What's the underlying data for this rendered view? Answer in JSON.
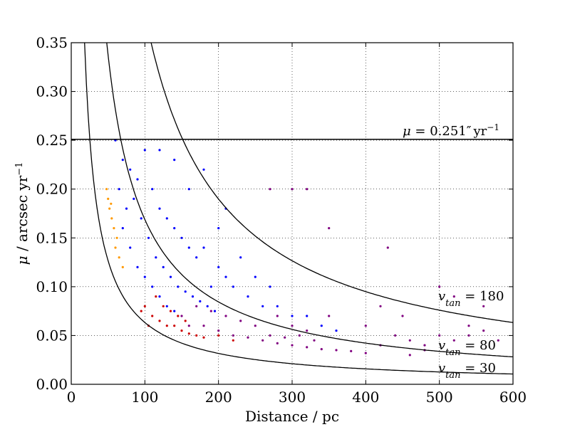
{
  "chart_data": {
    "type": "scatter",
    "title": "",
    "xlabel": "Distance / pc",
    "ylabel_parts": {
      "symbol": "μ",
      "text": " / arcsec yr",
      "sup": "−1"
    },
    "xlim": [
      0,
      600
    ],
    "ylim": [
      0,
      0.35
    ],
    "xticks": [
      0,
      100,
      200,
      300,
      400,
      500,
      600
    ],
    "xtick_labels": [
      "0",
      "100",
      "200",
      "300",
      "400",
      "500",
      "600"
    ],
    "yticks": [
      0.0,
      0.05,
      0.1,
      0.15,
      0.2,
      0.25,
      0.3,
      0.35
    ],
    "ytick_labels": [
      "0.00",
      "0.05",
      "0.10",
      "0.15",
      "0.20",
      "0.25",
      "0.30",
      "0.35"
    ],
    "grid": true,
    "grid_style": "dotted",
    "colors": {
      "blue": "#0000ff",
      "purple": "#800080",
      "red": "#cc0000",
      "orange": "#ff9900",
      "line": "#000000"
    },
    "hline": {
      "y": 0.251,
      "label": {
        "mu": "μ",
        "eq": " = 0.251",
        "prime": "″",
        "unit": "yr",
        "sup": "−1"
      }
    },
    "curves": [
      {
        "v": 30,
        "label": {
          "v": "v",
          "sub": "tan",
          "eq": " = 30"
        }
      },
      {
        "v": 80,
        "label": {
          "v": "v",
          "sub": "tan",
          "eq": " = 80"
        }
      },
      {
        "v": 180,
        "label": {
          "v": "v",
          "sub": "tan",
          "eq": " = 180"
        }
      }
    ],
    "series": [
      {
        "color": "blue",
        "points": [
          [
            60,
            0.25
          ],
          [
            70,
            0.23
          ],
          [
            80,
            0.22
          ],
          [
            90,
            0.21
          ],
          [
            100,
            0.24
          ],
          [
            110,
            0.2
          ],
          [
            120,
            0.18
          ],
          [
            130,
            0.17
          ],
          [
            140,
            0.16
          ],
          [
            150,
            0.15
          ],
          [
            160,
            0.14
          ],
          [
            170,
            0.13
          ],
          [
            180,
            0.14
          ],
          [
            200,
            0.12
          ],
          [
            210,
            0.11
          ],
          [
            220,
            0.1
          ],
          [
            240,
            0.09
          ],
          [
            260,
            0.08
          ],
          [
            280,
            0.08
          ],
          [
            300,
            0.07
          ],
          [
            320,
            0.07
          ],
          [
            70,
            0.16
          ],
          [
            80,
            0.14
          ],
          [
            90,
            0.12
          ],
          [
            100,
            0.11
          ],
          [
            110,
            0.1
          ],
          [
            120,
            0.09
          ],
          [
            130,
            0.08
          ],
          [
            140,
            0.075
          ],
          [
            85,
            0.19
          ],
          [
            95,
            0.17
          ],
          [
            105,
            0.15
          ],
          [
            115,
            0.13
          ],
          [
            125,
            0.12
          ],
          [
            135,
            0.11
          ],
          [
            145,
            0.1
          ],
          [
            155,
            0.095
          ],
          [
            165,
            0.09
          ],
          [
            175,
            0.085
          ],
          [
            185,
            0.08
          ],
          [
            195,
            0.075
          ],
          [
            65,
            0.2
          ],
          [
            75,
            0.18
          ],
          [
            190,
            0.1
          ],
          [
            230,
            0.13
          ],
          [
            250,
            0.11
          ],
          [
            270,
            0.1
          ],
          [
            200,
            0.16
          ],
          [
            210,
            0.18
          ],
          [
            160,
            0.2
          ],
          [
            180,
            0.22
          ],
          [
            140,
            0.23
          ],
          [
            120,
            0.24
          ],
          [
            340,
            0.06
          ],
          [
            360,
            0.055
          ]
        ]
      },
      {
        "color": "purple",
        "points": [
          [
            180,
            0.06
          ],
          [
            200,
            0.055
          ],
          [
            220,
            0.05
          ],
          [
            240,
            0.048
          ],
          [
            260,
            0.045
          ],
          [
            280,
            0.042
          ],
          [
            300,
            0.04
          ],
          [
            320,
            0.038
          ],
          [
            340,
            0.036
          ],
          [
            360,
            0.035
          ],
          [
            380,
            0.034
          ],
          [
            400,
            0.032
          ],
          [
            420,
            0.04
          ],
          [
            440,
            0.05
          ],
          [
            460,
            0.045
          ],
          [
            480,
            0.04
          ],
          [
            500,
            0.05
          ],
          [
            520,
            0.045
          ],
          [
            540,
            0.05
          ],
          [
            560,
            0.055
          ],
          [
            580,
            0.045
          ],
          [
            300,
            0.06
          ],
          [
            320,
            0.055
          ],
          [
            280,
            0.07
          ],
          [
            350,
            0.07
          ],
          [
            400,
            0.06
          ],
          [
            430,
            0.14
          ],
          [
            350,
            0.16
          ],
          [
            320,
            0.2
          ],
          [
            300,
            0.2
          ],
          [
            270,
            0.2
          ],
          [
            250,
            0.06
          ],
          [
            230,
            0.065
          ],
          [
            210,
            0.07
          ],
          [
            190,
            0.075
          ],
          [
            170,
            0.08
          ],
          [
            150,
            0.07
          ],
          [
            160,
            0.06
          ],
          [
            330,
            0.045
          ],
          [
            310,
            0.05
          ],
          [
            290,
            0.048
          ],
          [
            270,
            0.05
          ],
          [
            500,
            0.1
          ],
          [
            520,
            0.09
          ],
          [
            420,
            0.08
          ],
          [
            450,
            0.07
          ],
          [
            560,
            0.08
          ],
          [
            540,
            0.06
          ],
          [
            460,
            0.03
          ],
          [
            480,
            0.035
          ]
        ]
      },
      {
        "color": "red",
        "points": [
          [
            100,
            0.08
          ],
          [
            110,
            0.07
          ],
          [
            120,
            0.065
          ],
          [
            130,
            0.06
          ],
          [
            140,
            0.06
          ],
          [
            150,
            0.055
          ],
          [
            160,
            0.052
          ],
          [
            170,
            0.05
          ],
          [
            180,
            0.048
          ],
          [
            200,
            0.05
          ],
          [
            220,
            0.045
          ],
          [
            115,
            0.09
          ],
          [
            125,
            0.08
          ],
          [
            135,
            0.075
          ],
          [
            145,
            0.07
          ],
          [
            155,
            0.065
          ],
          [
            95,
            0.075
          ],
          [
            105,
            0.06
          ]
        ]
      },
      {
        "color": "orange",
        "points": [
          [
            50,
            0.19
          ],
          [
            52,
            0.18
          ],
          [
            55,
            0.17
          ],
          [
            58,
            0.16
          ],
          [
            60,
            0.14
          ],
          [
            62,
            0.15
          ],
          [
            48,
            0.2
          ],
          [
            54,
            0.185
          ],
          [
            65,
            0.13
          ],
          [
            70,
            0.12
          ]
        ]
      }
    ]
  }
}
